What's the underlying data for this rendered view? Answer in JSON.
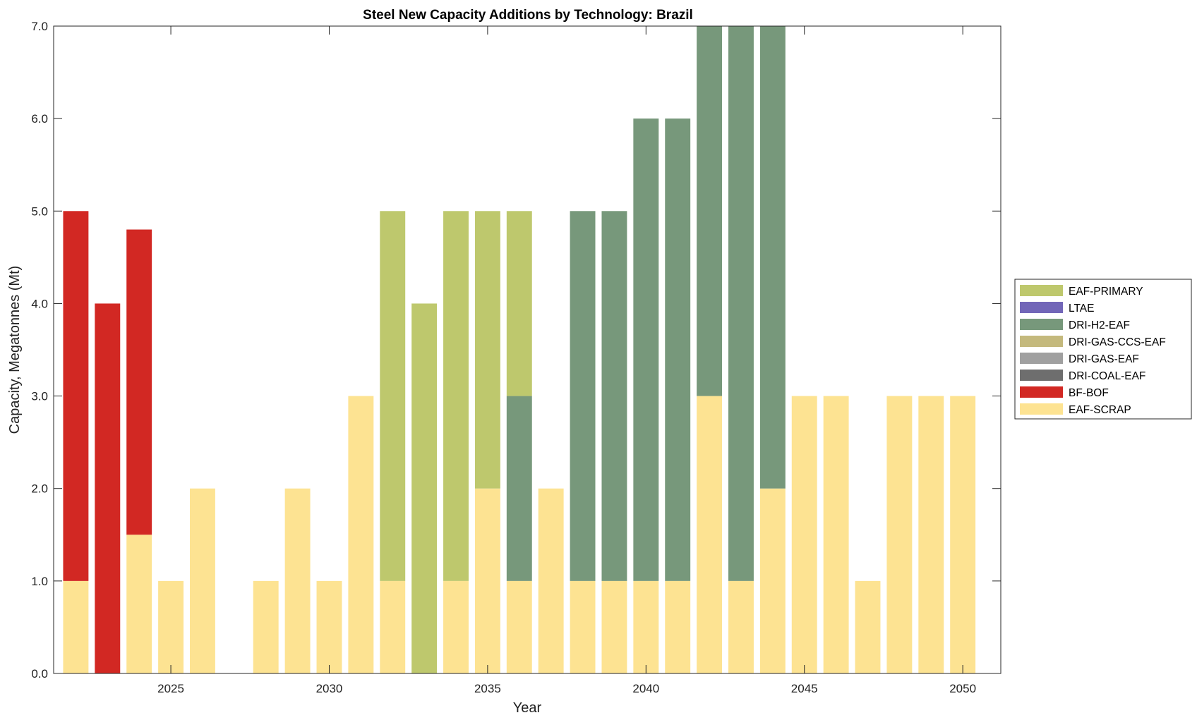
{
  "chart_data": {
    "type": "bar",
    "stacked": true,
    "title": "Steel New Capacity Additions by Technology: Brazil",
    "xlabel": "Year",
    "ylabel": "Capacity, Megatonnes (Mt)",
    "xlim": [
      2021.3,
      2051.2
    ],
    "ylim": [
      0,
      7
    ],
    "x": [
      2022,
      2023,
      2024,
      2025,
      2026,
      2027,
      2028,
      2029,
      2030,
      2031,
      2032,
      2033,
      2034,
      2035,
      2036,
      2037,
      2038,
      2039,
      2040,
      2041,
      2042,
      2043,
      2044,
      2045,
      2046,
      2047,
      2048,
      2049,
      2050
    ],
    "xticks": [
      2025,
      2030,
      2035,
      2040,
      2045,
      2050
    ],
    "xtick_labels": [
      "2025",
      "2030",
      "2035",
      "2040",
      "2045",
      "2050"
    ],
    "yticks": [
      0,
      1,
      2,
      3,
      4,
      5,
      6,
      7
    ],
    "ytick_labels": [
      "0.0",
      "1.0",
      "2.0",
      "3.0",
      "4.0",
      "5.0",
      "6.0",
      "7.0"
    ],
    "grid": false,
    "legend_position": "outside-right",
    "series": [
      {
        "name": "EAF-SCRAP",
        "color": "#fde392",
        "values": [
          1,
          0,
          1.5,
          1,
          2,
          0,
          1,
          2,
          1,
          3,
          1,
          0,
          1,
          2,
          1,
          2,
          1,
          1,
          1,
          1,
          3,
          1,
          2,
          3,
          3,
          1,
          3,
          3,
          3
        ]
      },
      {
        "name": "BF-BOF",
        "color": "#d22823",
        "values": [
          4,
          4,
          3.3,
          0,
          0,
          0,
          0,
          0,
          0,
          0,
          0,
          0,
          0,
          0,
          0,
          0,
          0,
          0,
          0,
          0,
          0,
          0,
          0,
          0,
          0,
          0,
          0,
          0,
          0
        ]
      },
      {
        "name": "DRI-COAL-EAF",
        "color": "#6e6e6e",
        "values": [
          0,
          0,
          0,
          0,
          0,
          0,
          0,
          0,
          0,
          0,
          0,
          0,
          0,
          0,
          0,
          0,
          0,
          0,
          0,
          0,
          0,
          0,
          0,
          0,
          0,
          0,
          0,
          0,
          0
        ]
      },
      {
        "name": "DRI-GAS-EAF",
        "color": "#a0a0a0",
        "values": [
          0,
          0,
          0,
          0,
          0,
          0,
          0,
          0,
          0,
          0,
          0,
          0,
          0,
          0,
          0,
          0,
          0,
          0,
          0,
          0,
          0,
          0,
          0,
          0,
          0,
          0,
          0,
          0,
          0
        ]
      },
      {
        "name": "DRI-GAS-CCS-EAF",
        "color": "#c4b97d",
        "values": [
          0,
          0,
          0,
          0,
          0,
          0,
          0,
          0,
          0,
          0,
          0,
          0,
          0,
          0,
          0,
          0,
          0,
          0,
          0,
          0,
          0,
          0,
          0,
          0,
          0,
          0,
          0,
          0,
          0
        ]
      },
      {
        "name": "DRI-H2-EAF",
        "color": "#77987b",
        "values": [
          0,
          0,
          0,
          0,
          0,
          0,
          0,
          0,
          0,
          0,
          0,
          0,
          0,
          0,
          2,
          0,
          4,
          4,
          5,
          5,
          4,
          6,
          5,
          0,
          0,
          0,
          0,
          0,
          0
        ]
      },
      {
        "name": "LTAE",
        "color": "#7266b8",
        "values": [
          0,
          0,
          0,
          0,
          0,
          0,
          0,
          0,
          0,
          0,
          0,
          0,
          0,
          0,
          0,
          0,
          0,
          0,
          0,
          0,
          0,
          0,
          0,
          0,
          0,
          0,
          0,
          0,
          0
        ]
      },
      {
        "name": "EAF-PRIMARY",
        "color": "#bec86d",
        "values": [
          0,
          0,
          0,
          0,
          0,
          0,
          0,
          0,
          0,
          0,
          4,
          4,
          4,
          3,
          2,
          0,
          0,
          0,
          0,
          0,
          0,
          0,
          0,
          0,
          0,
          0,
          0,
          0,
          0
        ]
      }
    ],
    "legend_order": [
      "EAF-PRIMARY",
      "LTAE",
      "DRI-H2-EAF",
      "DRI-GAS-CCS-EAF",
      "DRI-GAS-EAF",
      "DRI-COAL-EAF",
      "BF-BOF",
      "EAF-SCRAP"
    ]
  }
}
